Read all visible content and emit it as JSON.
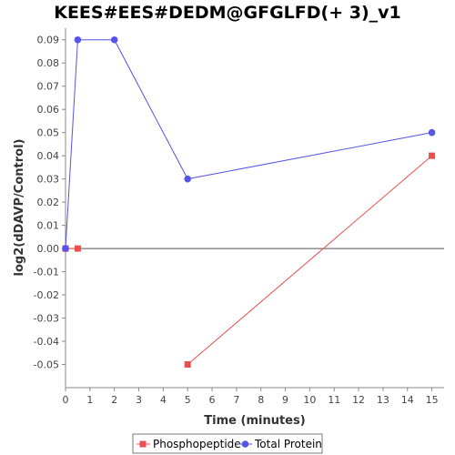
{
  "chart_data": {
    "type": "line",
    "title": "KEES#EES#DEDM@GFGLFD(+ 3)_v1",
    "xlabel": "Time (minutes)",
    "ylabel": "log2(dDAVP/Control)",
    "xlim": [
      0,
      15.5
    ],
    "ylim": [
      -0.06,
      0.095
    ],
    "x_ticks": [
      0,
      1,
      2,
      3,
      4,
      5,
      6,
      7,
      8,
      9,
      10,
      11,
      12,
      13,
      14,
      15
    ],
    "y_ticks": [
      -0.05,
      -0.04,
      -0.03,
      -0.02,
      -0.01,
      0.0,
      0.01,
      0.02,
      0.03,
      0.04,
      0.05,
      0.06,
      0.07,
      0.08,
      0.09
    ],
    "y_tick_labels": [
      "-0.05",
      "-0.04",
      "-0.03",
      "-0.02",
      "-0.01",
      "0.00",
      "0.01",
      "0.02",
      "0.03",
      "0.04",
      "0.05",
      "0.06",
      "0.07",
      "0.08",
      "0.09"
    ],
    "grid": false,
    "zero_line": true,
    "legend_position": "bottom",
    "series": [
      {
        "name": "Phosphopeptide",
        "color": "#e8504f",
        "marker": "square",
        "segments": [
          [
            [
              0,
              0.0
            ],
            [
              0.5,
              0.0
            ]
          ],
          [
            [
              5,
              -0.05
            ],
            [
              15,
              0.04
            ]
          ]
        ]
      },
      {
        "name": "Total Protein",
        "color": "#5454e8",
        "marker": "circle",
        "segments": [
          [
            [
              0,
              0.0
            ],
            [
              0.5,
              0.09
            ],
            [
              2,
              0.09
            ],
            [
              5,
              0.03
            ],
            [
              15,
              0.05
            ]
          ]
        ]
      }
    ]
  }
}
